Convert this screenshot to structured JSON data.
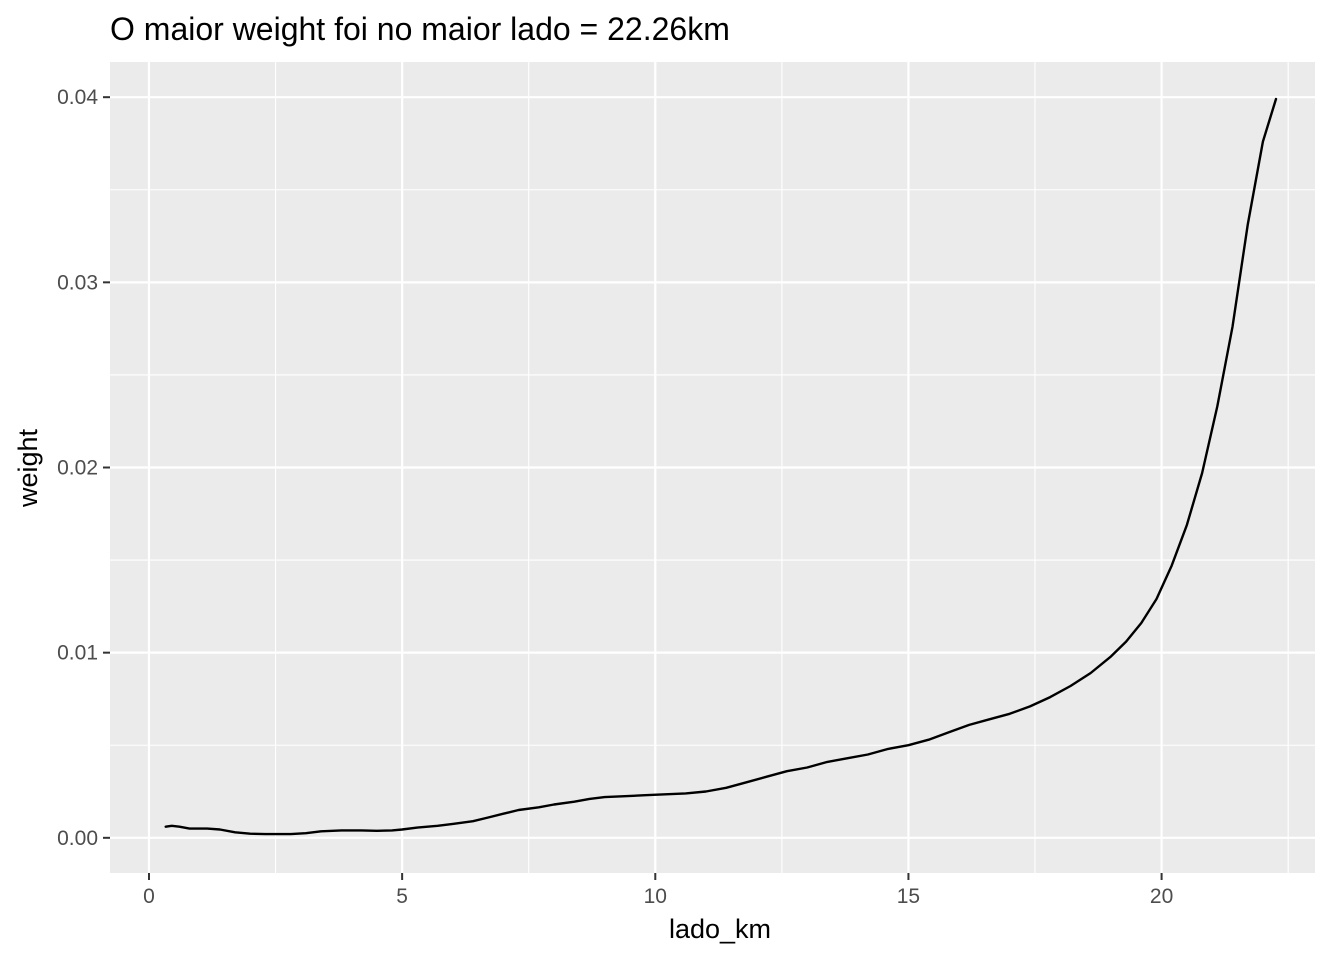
{
  "chart_data": {
    "type": "line",
    "title": "O maior weight foi no maior lado = 22.26km",
    "xlabel": "lado_km",
    "ylabel": "weight",
    "xlim": [
      -0.77,
      23.03
    ],
    "ylim": [
      -0.0019,
      0.0419
    ],
    "x_ticks": [
      0,
      5,
      10,
      15,
      20
    ],
    "x_tick_labels": [
      "0",
      "5",
      "10",
      "15",
      "20"
    ],
    "y_ticks": [
      0,
      0.01,
      0.02,
      0.03,
      0.04
    ],
    "y_tick_labels": [
      "0.00",
      "0.01",
      "0.02",
      "0.03",
      "0.04"
    ],
    "grid": true,
    "panel_color": "#ebebeb",
    "grid_color": "#ffffff",
    "line_color": "#000000",
    "series": [
      {
        "x": [
          0.33,
          0.45,
          0.6,
          0.8,
          1.0,
          1.15,
          1.4,
          1.7,
          2.0,
          2.3,
          2.6,
          2.8,
          3.1,
          3.4,
          3.8,
          4.2,
          4.5,
          4.8,
          5.0,
          5.3,
          5.7,
          6.0,
          6.4,
          6.7,
          7.0,
          7.3,
          7.7,
          8.0,
          8.4,
          8.7,
          9.0,
          9.4,
          9.8,
          10.2,
          10.6,
          11.0,
          11.4,
          11.8,
          12.2,
          12.6,
          13.0,
          13.4,
          13.8,
          14.2,
          14.6,
          15.0,
          15.4,
          15.8,
          16.2,
          16.6,
          17.0,
          17.4,
          17.8,
          18.2,
          18.6,
          19.0,
          19.3,
          19.6,
          19.9,
          20.2,
          20.5,
          20.8,
          21.1,
          21.4,
          21.7,
          22.0,
          22.26
        ],
        "y": [
          0.0006,
          0.00065,
          0.0006,
          0.0005,
          0.0005,
          0.0005,
          0.00045,
          0.0003,
          0.00022,
          0.0002,
          0.0002,
          0.0002,
          0.00025,
          0.00035,
          0.0004,
          0.0004,
          0.00038,
          0.0004,
          0.00045,
          0.00055,
          0.00065,
          0.00075,
          0.0009,
          0.0011,
          0.0013,
          0.0015,
          0.00165,
          0.0018,
          0.00195,
          0.0021,
          0.0022,
          0.00225,
          0.0023,
          0.00235,
          0.0024,
          0.0025,
          0.0027,
          0.003,
          0.0033,
          0.0036,
          0.0038,
          0.0041,
          0.0043,
          0.0045,
          0.0048,
          0.005,
          0.0053,
          0.0057,
          0.0061,
          0.0064,
          0.0067,
          0.0071,
          0.0076,
          0.0082,
          0.0089,
          0.0098,
          0.0106,
          0.0116,
          0.0129,
          0.0147,
          0.0169,
          0.0197,
          0.0233,
          0.0276,
          0.0331,
          0.0376,
          0.0399
        ]
      }
    ]
  }
}
